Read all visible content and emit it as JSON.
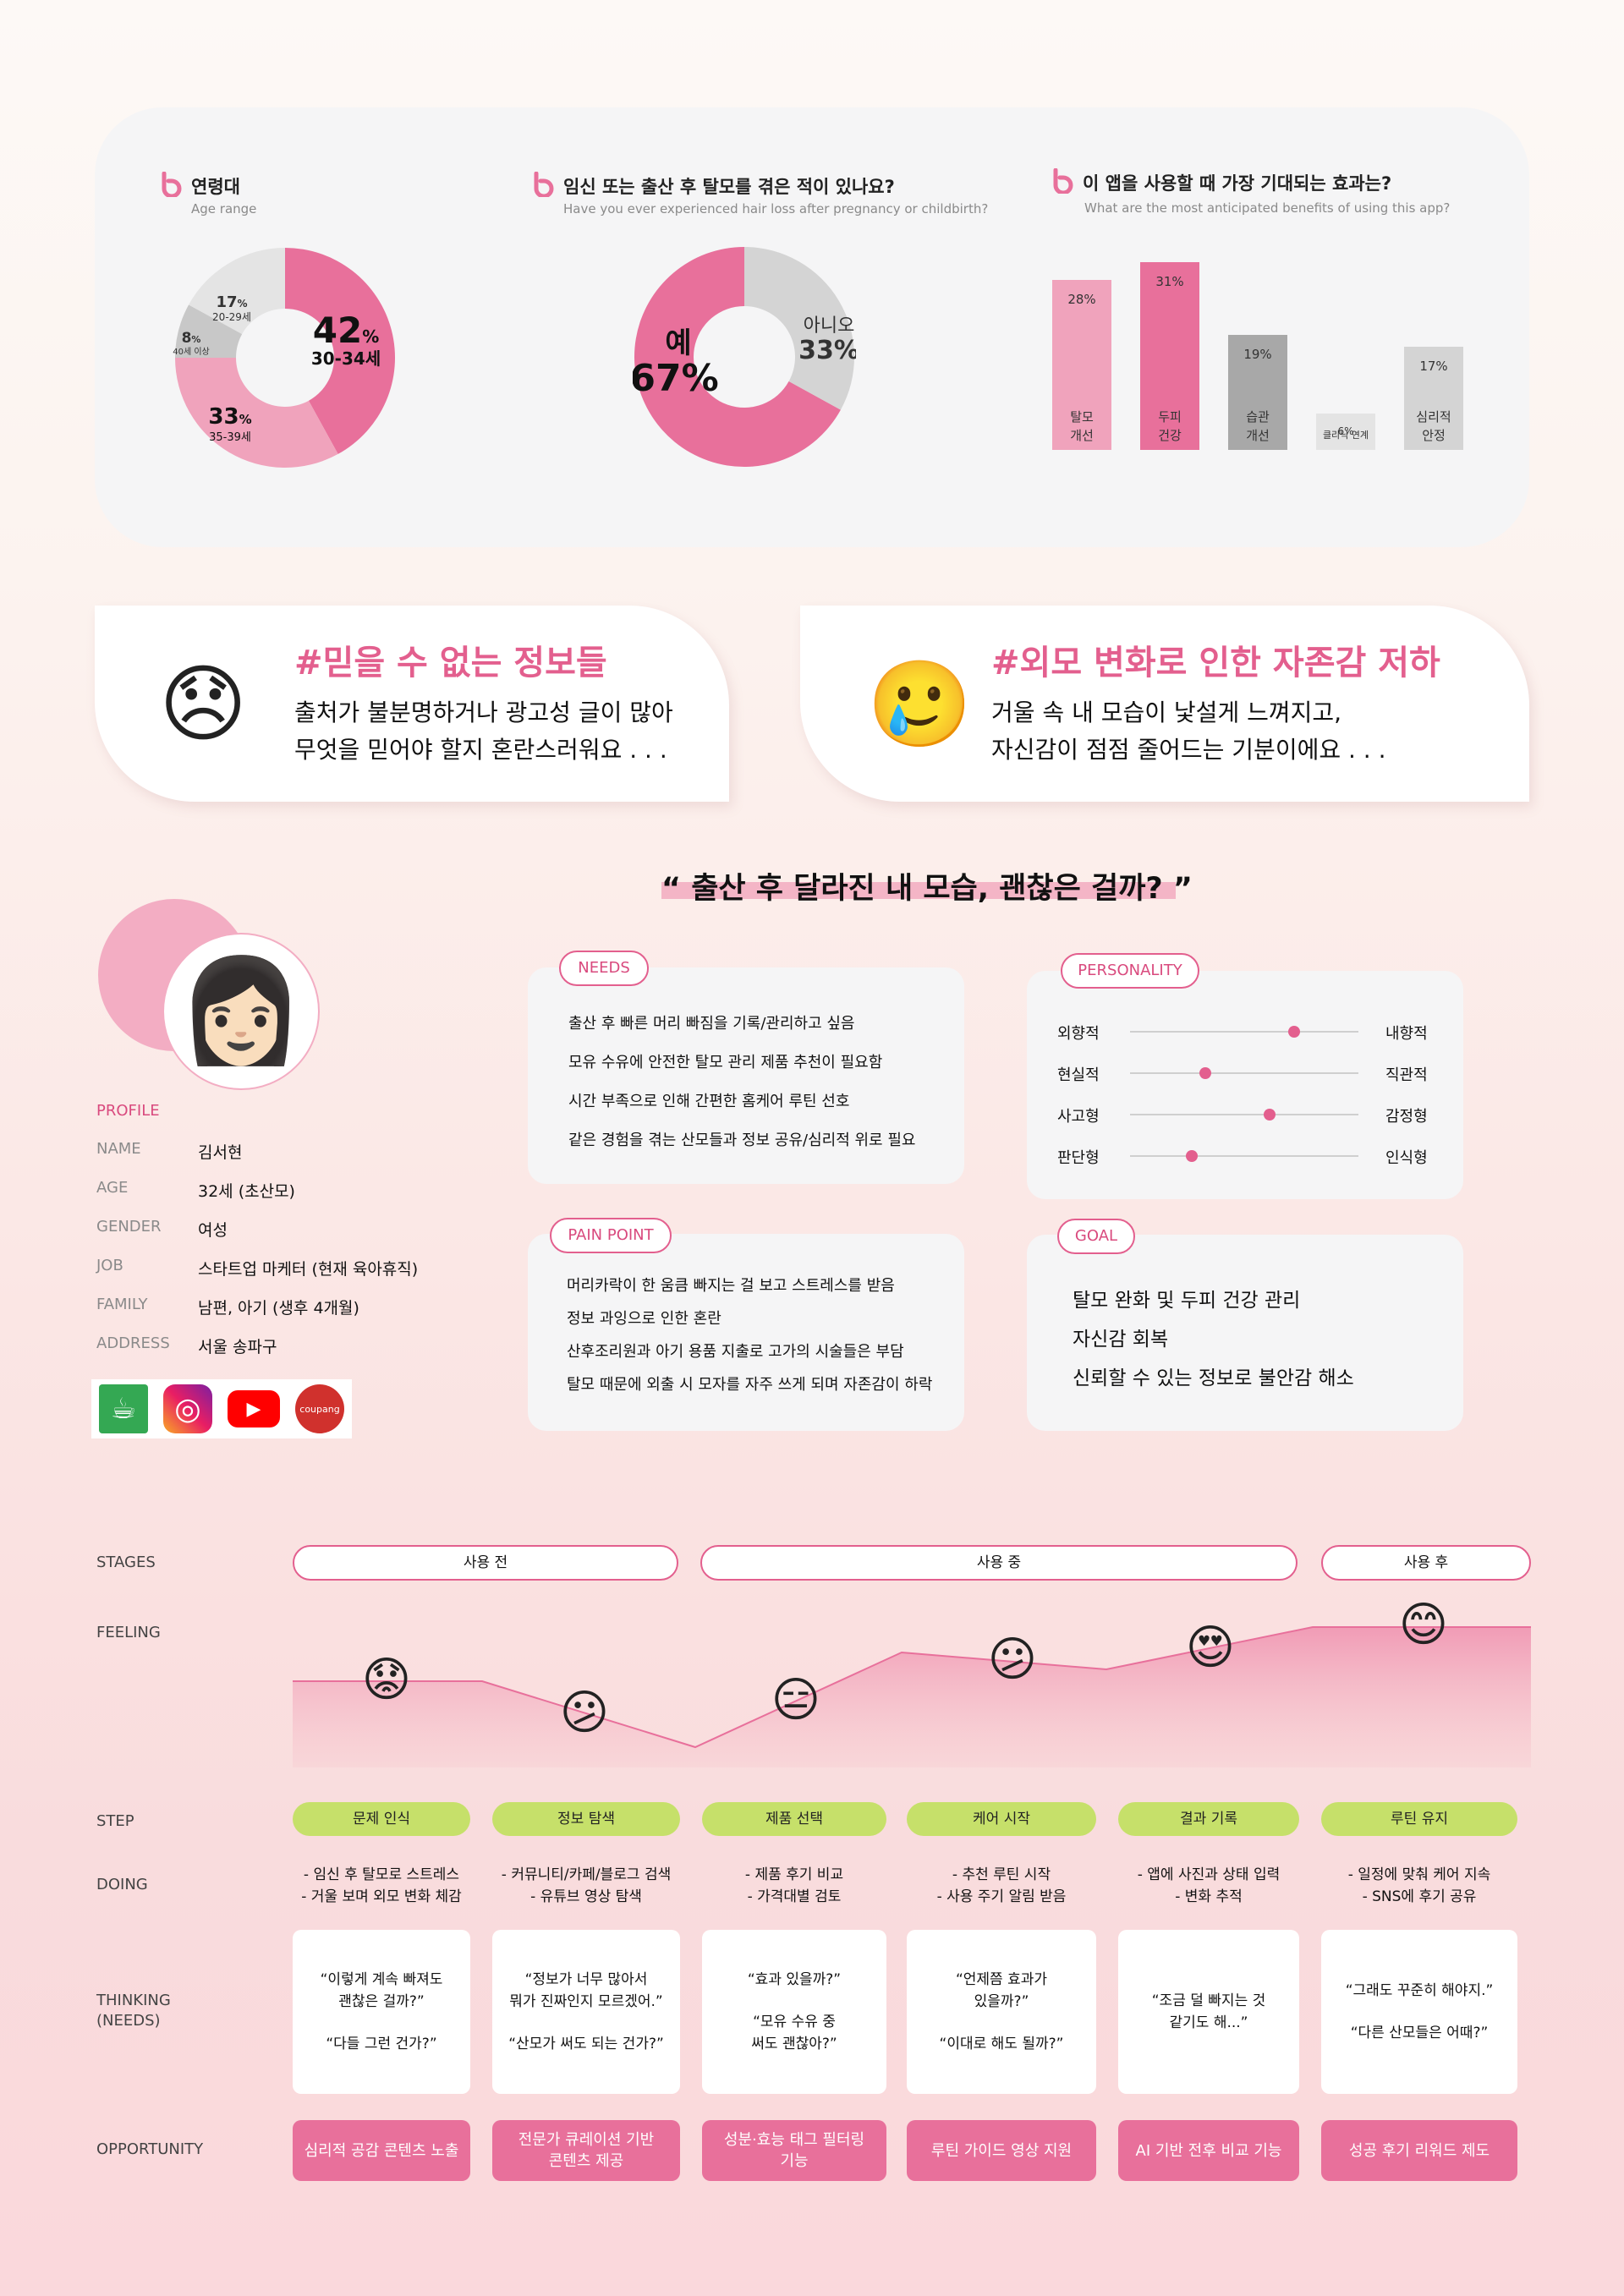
{
  "survey": {
    "age": {
      "title": "연령대",
      "subtitle": "Age range",
      "segments": [
        {
          "percent": "42",
          "unit": "%",
          "label": "30-34세",
          "value": 42,
          "color": "#e8709b"
        },
        {
          "percent": "33",
          "unit": "%",
          "label": "35-39세",
          "value": 33,
          "color": "#f0a3bc"
        },
        {
          "percent": "8",
          "unit": "%",
          "label": "40세 이상",
          "value": 8,
          "color": "#c8c8c8"
        },
        {
          "percent": "17",
          "unit": "%",
          "label": "20-29세",
          "value": 17,
          "color": "#e4e4e4"
        }
      ]
    },
    "hairloss": {
      "title": "임신 또는 출산 후 탈모를 겪은 적이 있나요?",
      "subtitle": "Have you ever experienced hair loss after pregnancy or childbirth?",
      "yes_label": "예",
      "yes_value": "67%",
      "no_label": "아니오",
      "no_value": "33%",
      "yes": 67,
      "no": 33,
      "yes_color": "#e8709b",
      "no_color": "#d4d4d4"
    },
    "benefits": {
      "title": "이 앱을 사용할 때 가장 기대되는 효과는?",
      "subtitle": "What are the most anticipated benefits of using this app?",
      "bars": [
        {
          "value_label": "28%",
          "value": 28,
          "label_line1": "탈모",
          "label_line2": "개선",
          "color": "#f0a3bc"
        },
        {
          "value_label": "31%",
          "value": 31,
          "label_line1": "두피",
          "label_line2": "건강",
          "color": "#e8709b"
        },
        {
          "value_label": "19%",
          "value": 19,
          "label_line1": "습관",
          "label_line2": "개선",
          "color": "#a8a8a8"
        },
        {
          "value_label": "6%",
          "value": 6,
          "label_line1": "클리닉 연계",
          "label_line2": "",
          "color": "#e4e4e4"
        },
        {
          "value_label": "17%",
          "value": 17,
          "label_line1": "심리적",
          "label_line2": "안정",
          "color": "#d4d4d4"
        }
      ]
    }
  },
  "pain_cards": [
    {
      "emoji": "😞",
      "title": "#믿을 수 없는 정보들",
      "line1": "출처가 불분명하거나 광고성 글이 많아",
      "line2": "무엇을 믿어야 할지 혼란스러워요 . . ."
    },
    {
      "emoji": "🥲",
      "title": "#외모 변화로 인한 자존감 저하",
      "line1": "거울 속 내 모습이 낯설게 느껴지고,",
      "line2": "자신감이 점점 줄어드는 기분이에요 . . ."
    }
  ],
  "persona": {
    "quote": "“ 출산 후 달라진 내 모습, 괜찮은 걸까? ”",
    "avatar_emoji": "👩🏻",
    "profile_heading": "PROFILE",
    "profile": [
      {
        "key": "NAME",
        "value": "김서현"
      },
      {
        "key": "AGE",
        "value": "32세 (초산모)"
      },
      {
        "key": "GENDER",
        "value": "여성"
      },
      {
        "key": "JOB",
        "value": "스타트업 마케터 (현재 육아휴직)"
      },
      {
        "key": "FAMILY",
        "value": "남편, 아기 (생후 4개월)"
      },
      {
        "key": "ADDRESS",
        "value": "서울 송파구"
      }
    ],
    "apps": [
      {
        "icon": "cafe-app-icon",
        "glyph": "☕",
        "color": "#34a853"
      },
      {
        "icon": "instagram-icon",
        "glyph": "◎",
        "color": "#d6336c"
      },
      {
        "icon": "youtube-icon",
        "glyph": "▶",
        "color": "#ff0000"
      },
      {
        "icon": "coupang-icon",
        "glyph": "coupang",
        "color": "#d0312d"
      }
    ],
    "needs_title": "NEEDS",
    "needs": [
      "출산 후 빠른 머리 빠짐을 기록/관리하고 싶음",
      "모유 수유에 안전한 탈모 관리 제품 추천이 필요함",
      "시간 부족으로 인해 간편한 홈케어 루틴 선호",
      "같은 경험을 겪는 산모들과 정보 공유/심리적 위로 필요"
    ],
    "pain_title": "PAIN POINT",
    "pains": [
      "머리카락이 한 움큼 빠지는 걸 보고 스트레스를 받음",
      "정보 과잉으로 인한 혼란",
      "산후조리원과 아기 용품 지출로 고가의 시술들은 부담",
      "탈모 때문에 외출 시 모자를 자주 쓰게 되며 자존감이 하락"
    ],
    "personality_title": "PERSONALITY",
    "personality": [
      {
        "left": "외향적",
        "right": "내향적",
        "value": 0.72
      },
      {
        "left": "현실적",
        "right": "직관적",
        "value": 0.33
      },
      {
        "left": "사고형",
        "right": "감정형",
        "value": 0.61
      },
      {
        "left": "판단형",
        "right": "인식형",
        "value": 0.27
      }
    ],
    "goal_title": "GOAL",
    "goals": [
      "탈모 완화 및 두피 건강 관리",
      "자신감 회복",
      "신뢰할 수 있는 정보로 불안감 해소"
    ]
  },
  "journey": {
    "labels": {
      "stages": "STAGES",
      "feeling": "FEELING",
      "step": "STEP",
      "doing": "DOING",
      "thinking_line1": "THINKING",
      "thinking_line2": "(NEEDS)",
      "opportunity": "OPPORTUNITY"
    },
    "stages": [
      "사용 전",
      "사용 중",
      "사용 후"
    ],
    "feeling_emojis": [
      "😟",
      "😕",
      "😑",
      "😕",
      "😍",
      "😊"
    ],
    "steps": [
      {
        "step": "문제 인식",
        "doing": [
          "- 임신 후 탈모로 스트레스",
          "- 거울 보며 외모 변화 체감"
        ],
        "thinking": [
          "“이렇게 계속 빠져도\n괜찮은 걸까?”",
          "“다들 그런 건가?”"
        ],
        "opportunity": "심리적 공감 콘텐츠 노출"
      },
      {
        "step": "정보 탐색",
        "doing": [
          "- 커뮤니티/카페/블로그 검색",
          "- 유튜브 영상 탐색"
        ],
        "thinking": [
          "“정보가 너무 많아서\n뭐가 진짜인지 모르겠어.”",
          "“산모가 써도 되는 건가?”"
        ],
        "opportunity": "전문가 큐레이션 기반\n콘텐츠 제공"
      },
      {
        "step": "제품 선택",
        "doing": [
          "- 제품 후기 비교",
          "- 가격대별 검토"
        ],
        "thinking": [
          "“효과 있을까?”",
          "“모유 수유 중\n써도 괜찮아?”"
        ],
        "opportunity": "성분·효능 태그 필터링\n기능"
      },
      {
        "step": "케어 시작",
        "doing": [
          "- 추천 루틴 시작",
          "- 사용 주기 알림 받음"
        ],
        "thinking": [
          "“언제쯤 효과가\n있을까?”",
          "“이대로 해도 될까?”"
        ],
        "opportunity": "루틴 가이드 영상 지원"
      },
      {
        "step": "결과 기록",
        "doing": [
          "- 앱에 사진과 상태 입력",
          "- 변화 추적"
        ],
        "thinking": [
          "“조금 덜 빠지는 것\n같기도 해...”"
        ],
        "opportunity": "AI 기반 전후 비교 기능"
      },
      {
        "step": "루틴 유지",
        "doing": [
          "- 일정에 맞춰 케어 지속",
          "- SNS에 후기 공유"
        ],
        "thinking": [
          "“그래도 꾸준히 해야지.”",
          "“다른 산모들은 어때?”"
        ],
        "opportunity": "성공 후기 리워드 제도"
      }
    ]
  }
}
